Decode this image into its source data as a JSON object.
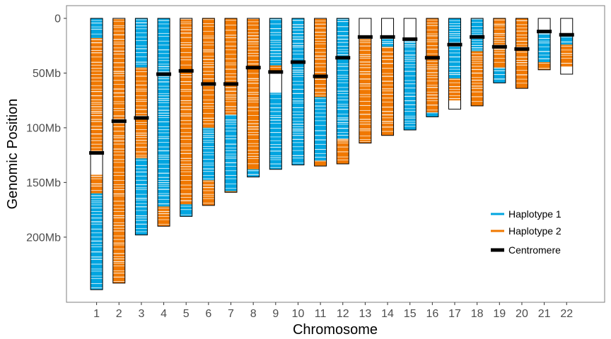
{
  "chart_data": {
    "type": "ideogram",
    "xlabel": "Chromosome",
    "ylabel": "Genomic Position",
    "y_unit": "Mb",
    "ylim": [
      0,
      258
    ],
    "y_reversed": true,
    "y_ticks": [
      {
        "value": 0,
        "label": "0"
      },
      {
        "value": 50,
        "label": "50Mb"
      },
      {
        "value": 100,
        "label": "100Mb"
      },
      {
        "value": 150,
        "label": "150Mb"
      },
      {
        "value": 200,
        "label": "200Mb"
      }
    ],
    "grid": false,
    "legend_position": "bottom-right",
    "colors": {
      "haplotype1": "#00a5e0",
      "haplotype2": "#f07800",
      "centromere": "#000000"
    },
    "legend": [
      {
        "key": "haplotype1",
        "label": "Haplotype 1"
      },
      {
        "key": "haplotype2",
        "label": "Haplotype 2"
      },
      {
        "key": "centromere",
        "label": "Centromere"
      }
    ],
    "chromosomes": [
      {
        "name": "1",
        "length": 248,
        "centromere": 123,
        "segments": [
          {
            "start": 0,
            "end": 18,
            "haplotype": 1
          },
          {
            "start": 18,
            "end": 121,
            "haplotype": 2
          },
          {
            "start": 143,
            "end": 160,
            "haplotype": 2
          },
          {
            "start": 160,
            "end": 248,
            "haplotype": 1
          }
        ]
      },
      {
        "name": "2",
        "length": 242,
        "centromere": 94,
        "segments": [
          {
            "start": 0,
            "end": 242,
            "haplotype": 2
          }
        ]
      },
      {
        "name": "3",
        "length": 198,
        "centromere": 91,
        "segments": [
          {
            "start": 0,
            "end": 45,
            "haplotype": 1
          },
          {
            "start": 45,
            "end": 128,
            "haplotype": 2
          },
          {
            "start": 128,
            "end": 198,
            "haplotype": 1
          }
        ]
      },
      {
        "name": "4",
        "length": 190,
        "centromere": 51,
        "segments": [
          {
            "start": 0,
            "end": 172,
            "haplotype": 1
          },
          {
            "start": 172,
            "end": 190,
            "haplotype": 2
          }
        ]
      },
      {
        "name": "5",
        "length": 181,
        "centromere": 48,
        "segments": [
          {
            "start": 0,
            "end": 170,
            "haplotype": 2
          },
          {
            "start": 170,
            "end": 181,
            "haplotype": 1
          }
        ]
      },
      {
        "name": "6",
        "length": 171,
        "centromere": 60,
        "segments": [
          {
            "start": 0,
            "end": 100,
            "haplotype": 2
          },
          {
            "start": 100,
            "end": 148,
            "haplotype": 1
          },
          {
            "start": 148,
            "end": 171,
            "haplotype": 2
          }
        ]
      },
      {
        "name": "7",
        "length": 159,
        "centromere": 60,
        "segments": [
          {
            "start": 0,
            "end": 88,
            "haplotype": 2
          },
          {
            "start": 88,
            "end": 158,
            "haplotype": 1
          },
          {
            "start": 158,
            "end": 159,
            "haplotype": 2
          }
        ]
      },
      {
        "name": "8",
        "length": 145,
        "centromere": 45,
        "segments": [
          {
            "start": 0,
            "end": 138,
            "haplotype": 2
          },
          {
            "start": 138,
            "end": 145,
            "haplotype": 1
          }
        ]
      },
      {
        "name": "9",
        "length": 138,
        "centromere": 49,
        "segments": [
          {
            "start": 0,
            "end": 43,
            "haplotype": 1
          },
          {
            "start": 43,
            "end": 50,
            "haplotype": 2
          },
          {
            "start": 68,
            "end": 138,
            "haplotype": 1
          }
        ]
      },
      {
        "name": "10",
        "length": 134,
        "centromere": 40,
        "segments": [
          {
            "start": 0,
            "end": 134,
            "haplotype": 1
          }
        ]
      },
      {
        "name": "11",
        "length": 135,
        "centromere": 53,
        "segments": [
          {
            "start": 0,
            "end": 72,
            "haplotype": 2
          },
          {
            "start": 72,
            "end": 130,
            "haplotype": 1
          },
          {
            "start": 130,
            "end": 135,
            "haplotype": 2
          }
        ]
      },
      {
        "name": "12",
        "length": 133,
        "centromere": 36,
        "segments": [
          {
            "start": 0,
            "end": 110,
            "haplotype": 1
          },
          {
            "start": 110,
            "end": 133,
            "haplotype": 2
          }
        ]
      },
      {
        "name": "13",
        "length": 114,
        "centromere": 17,
        "segments": [
          {
            "start": 19,
            "end": 114,
            "haplotype": 2
          }
        ]
      },
      {
        "name": "14",
        "length": 107,
        "centromere": 17,
        "segments": [
          {
            "start": 19,
            "end": 26,
            "haplotype": 1
          },
          {
            "start": 26,
            "end": 107,
            "haplotype": 2
          }
        ]
      },
      {
        "name": "15",
        "length": 102,
        "centromere": 19,
        "segments": [
          {
            "start": 21,
            "end": 102,
            "haplotype": 1
          }
        ]
      },
      {
        "name": "16",
        "length": 90,
        "centromere": 36,
        "segments": [
          {
            "start": 0,
            "end": 86,
            "haplotype": 2
          },
          {
            "start": 86,
            "end": 90,
            "haplotype": 1
          }
        ]
      },
      {
        "name": "17",
        "length": 83,
        "centromere": 24,
        "segments": [
          {
            "start": 0,
            "end": 55,
            "haplotype": 1
          },
          {
            "start": 55,
            "end": 75,
            "haplotype": 2
          }
        ]
      },
      {
        "name": "18",
        "length": 80,
        "centromere": 17,
        "segments": [
          {
            "start": 0,
            "end": 30,
            "haplotype": 1
          },
          {
            "start": 30,
            "end": 80,
            "haplotype": 2
          }
        ]
      },
      {
        "name": "19",
        "length": 59,
        "centromere": 26,
        "segments": [
          {
            "start": 0,
            "end": 45,
            "haplotype": 2
          },
          {
            "start": 45,
            "end": 59,
            "haplotype": 1
          }
        ]
      },
      {
        "name": "20",
        "length": 64,
        "centromere": 28,
        "segments": [
          {
            "start": 0,
            "end": 64,
            "haplotype": 2
          }
        ]
      },
      {
        "name": "21",
        "length": 47,
        "centromere": 12,
        "segments": [
          {
            "start": 14,
            "end": 40,
            "haplotype": 1
          },
          {
            "start": 40,
            "end": 47,
            "haplotype": 2
          }
        ]
      },
      {
        "name": "22",
        "length": 51,
        "centromere": 15,
        "segments": [
          {
            "start": 16,
            "end": 24,
            "haplotype": 1
          },
          {
            "start": 24,
            "end": 44,
            "haplotype": 2
          }
        ]
      }
    ]
  }
}
